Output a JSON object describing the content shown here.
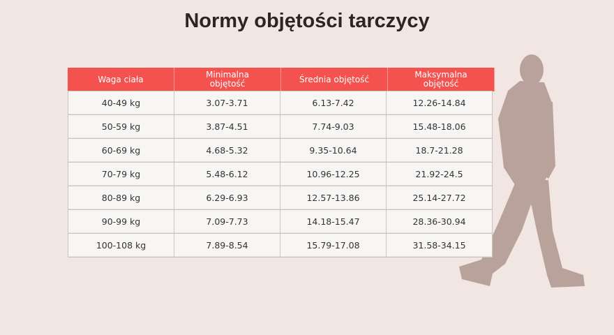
{
  "title": "Normy objętości tarczycy",
  "table": {
    "headers": [
      "Waga ciała",
      "Minimalna objętość",
      "Średnia objętość",
      "Maksymalna objętość"
    ],
    "rows": [
      [
        "40-49 kg",
        "3.07-3.71",
        "6.13-7.42",
        "12.26-14.84"
      ],
      [
        "50-59 kg",
        "3.87-4.51",
        "7.74-9.03",
        "15.48-18.06"
      ],
      [
        "60-69 kg",
        "4.68-5.32",
        "9.35-10.64",
        "18.7-21.28"
      ],
      [
        "70-79 kg",
        "5.48-6.12",
        "10.96-12.25",
        "21.92-24.5"
      ],
      [
        "80-89 kg",
        "6.29-6.93",
        "12.57-13.86",
        "25.14-27.72"
      ],
      [
        "90-99 kg",
        "7.09-7.73",
        "14.18-15.47",
        "28.36-30.94"
      ],
      [
        "100-108 kg",
        "7.89-8.54",
        "15.79-17.08",
        "31.58-34.15"
      ]
    ]
  }
}
